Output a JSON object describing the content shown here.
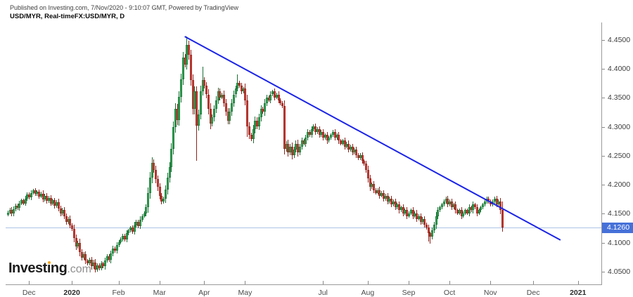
{
  "header": {
    "published_line": "Published on Investing.com, 7/Nov/2020 - 9:10:07 GMT, Powered by TradingView",
    "symbol_line": "USD/MYR, Real-timeFX:USD/MYR, D"
  },
  "logo": {
    "part1": "Invest",
    "part2": "ı",
    "part3": "ng",
    "suffix": ".com"
  },
  "chart_data": {
    "type": "candlestick",
    "title": "USD/MYR, Real-timeFX:USD/MYR, D",
    "symbol": "USD/MYR",
    "interval": "D",
    "grid": false,
    "y_axis": {
      "side": "right",
      "min": 4.028,
      "max": 4.4803,
      "ticks": [
        {
          "value": 4.45,
          "label": "4.4500"
        },
        {
          "value": 4.4,
          "label": "4.4000"
        },
        {
          "value": 4.35,
          "label": "4.3500"
        },
        {
          "value": 4.3,
          "label": "4.3000"
        },
        {
          "value": 4.25,
          "label": "4.2500"
        },
        {
          "value": 4.2,
          "label": "4.2000"
        },
        {
          "value": 4.15,
          "label": "4.1500"
        },
        {
          "value": 4.1,
          "label": "4.1000"
        },
        {
          "value": 4.05,
          "label": "4.0500"
        }
      ]
    },
    "x_axis": {
      "span_days": 306,
      "ticks": [
        {
          "label": "Dec",
          "day": 12
        },
        {
          "label": "2020",
          "day": 34,
          "bold": true
        },
        {
          "label": "Feb",
          "day": 58
        },
        {
          "label": "Mar",
          "day": 79
        },
        {
          "label": "Apr",
          "day": 102
        },
        {
          "label": "May",
          "day": 123
        },
        {
          "label": "Jul",
          "day": 163
        },
        {
          "label": "Aug",
          "day": 186
        },
        {
          "label": "Sep",
          "day": 207
        },
        {
          "label": "Oct",
          "day": 228
        },
        {
          "label": "Nov",
          "day": 249
        },
        {
          "label": "Dec",
          "day": 271
        },
        {
          "label": "2021",
          "day": 294,
          "bold": true
        }
      ]
    },
    "last_price": {
      "value": 4.126,
      "label": "4.1260",
      "line_color": "#adc3e4",
      "label_color": "#4671d8"
    },
    "trendline": {
      "from_day": 92,
      "from_price": 4.456,
      "to_day": 285,
      "to_price": 4.1045,
      "color": "#1a23e8",
      "width": 2
    },
    "colors": {
      "up": "#2e9e4f",
      "up_border": "#1b6f35",
      "down": "#c33a32",
      "down_border": "#8f241e"
    },
    "candles": {
      "start_day": 1,
      "first_open": 4.148,
      "closes": [
        4.152,
        4.157,
        4.15,
        4.158,
        4.164,
        4.16,
        4.168,
        4.173,
        4.168,
        4.176,
        4.183,
        4.178,
        4.186,
        4.19,
        4.184,
        4.188,
        4.18,
        4.185,
        4.175,
        4.181,
        4.172,
        4.177,
        4.168,
        4.173,
        4.164,
        4.17,
        4.159,
        4.15,
        4.156,
        4.146,
        4.136,
        4.141,
        4.13,
        4.124,
        4.108,
        4.094,
        4.1,
        4.084,
        4.074,
        4.08,
        4.069,
        4.064,
        4.07,
        4.059,
        4.066,
        4.054,
        4.061,
        4.056,
        4.064,
        4.059,
        4.069,
        4.076,
        4.07,
        4.081,
        4.09,
        4.086,
        4.096,
        4.101,
        4.106,
        4.112,
        4.106,
        4.116,
        4.121,
        4.126,
        4.119,
        4.13,
        4.136,
        4.129,
        4.14,
        4.146,
        4.151,
        4.161,
        4.186,
        4.212,
        4.238,
        4.226,
        4.21,
        4.196,
        4.181,
        4.171,
        4.176,
        4.192,
        4.212,
        4.231,
        4.262,
        4.3,
        4.331,
        4.312,
        4.352,
        4.382,
        4.42,
        4.408,
        4.441,
        4.424,
        4.381,
        4.331,
        4.361,
        4.302,
        4.322,
        4.362,
        4.381,
        4.371,
        4.356,
        4.331,
        4.306,
        4.316,
        4.331,
        4.346,
        4.361,
        4.351,
        4.356,
        4.341,
        4.326,
        4.311,
        4.326,
        4.341,
        4.356,
        4.366,
        4.376,
        4.371,
        4.361,
        4.366,
        4.346,
        4.301,
        4.286,
        4.279,
        4.296,
        4.311,
        4.301,
        4.316,
        4.331,
        4.326,
        4.341,
        4.351,
        4.346,
        4.356,
        4.361,
        4.351,
        4.356,
        4.346,
        4.341,
        4.336,
        4.262,
        4.271,
        4.256,
        4.266,
        4.251,
        4.261,
        4.271,
        4.256,
        4.266,
        4.276,
        4.271,
        4.281,
        4.291,
        4.286,
        4.296,
        4.301,
        4.291,
        4.296,
        4.286,
        4.291,
        4.281,
        4.286,
        4.276,
        4.281,
        4.286,
        4.291,
        4.281,
        4.286,
        4.276,
        4.271,
        4.276,
        4.266,
        4.271,
        4.261,
        4.266,
        4.256,
        4.261,
        4.251,
        4.246,
        4.251,
        4.241,
        4.236,
        4.226,
        4.211,
        4.196,
        4.201,
        4.191,
        4.186,
        4.191,
        4.181,
        4.186,
        4.176,
        4.181,
        4.171,
        4.176,
        4.166,
        4.171,
        4.161,
        4.166,
        4.156,
        4.161,
        4.151,
        4.156,
        4.146,
        4.151,
        4.156,
        4.146,
        4.151,
        4.141,
        4.146,
        4.136,
        4.141,
        4.131,
        4.126,
        4.116,
        4.111,
        4.121,
        4.131,
        4.146,
        4.156,
        4.161,
        4.166,
        4.171,
        4.176,
        4.166,
        4.171,
        4.161,
        4.166,
        4.156,
        4.151,
        4.156,
        4.146,
        4.151,
        4.156,
        4.151,
        4.161,
        4.156,
        4.166,
        4.161,
        4.151,
        4.156,
        4.161,
        4.166,
        4.171,
        4.176,
        4.171,
        4.166,
        4.171,
        4.176,
        4.166,
        4.171,
        4.156,
        4.126
      ],
      "wick_overrides": {
        "45": {
          "l": 4.048
        },
        "92": {
          "h": 4.456
        },
        "97": {
          "l": 4.242
        },
        "100": {
          "h": 4.404
        },
        "118": {
          "h": 4.39
        },
        "123": {
          "l": 4.283
        },
        "216": {
          "l": 4.102
        },
        "217": {
          "l": 4.098
        },
        "254": {
          "h": 4.171,
          "l": 4.119
        }
      }
    }
  }
}
